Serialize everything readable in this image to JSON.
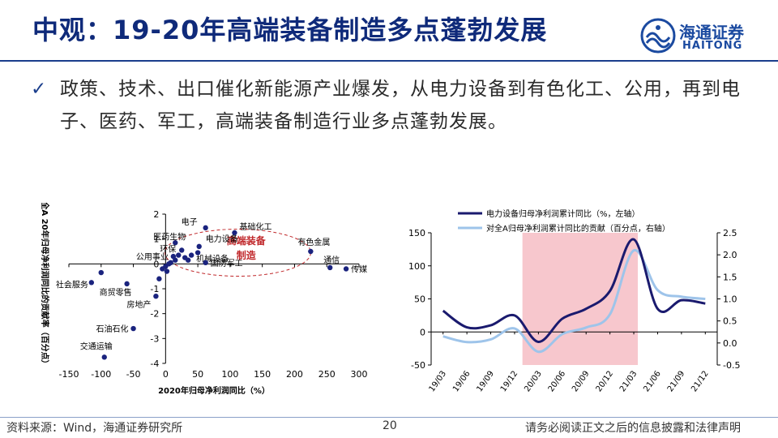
{
  "header": {
    "title": "中观：19-20年高端装备制造多点蓬勃发展",
    "logo_cn": "海通证券",
    "logo_en": "HAITONG"
  },
  "bullet": {
    "mark": "✓",
    "text": "政策、技术、出口催化新能源产业爆发，从电力设备到有色化工、公用，再到电子、医药、军工，高端装备制造行业多点蓬勃发展。"
  },
  "footer": {
    "source": "资料来源：Wind，海通证券研究所",
    "page": "20",
    "disclaimer": "请务必阅读正文之后的信息披露和法律声明"
  },
  "colors": {
    "brand": "#1a3e8c",
    "dot": "#1a237e",
    "highlight": "#c0282b",
    "line_dark": "#1a1a6e",
    "line_light": "#9ec4ea",
    "shade": "#f7c7cd"
  },
  "chart_data": [
    {
      "type": "scatter",
      "xlabel": "2020年归母净利润同比（%）",
      "ylabel": "对全A 20年归母净利润同比的贡献率（百分点）",
      "xlim": [
        -150,
        300
      ],
      "ylim": [
        -4,
        2
      ],
      "xticks": [
        -150,
        -100,
        -50,
        0,
        50,
        100,
        150,
        200,
        250,
        300
      ],
      "yticks": [
        2,
        1,
        0,
        -1,
        -2,
        -3,
        -4
      ],
      "annotation": {
        "text": "高端装备制造",
        "line1": "高端装备",
        "line2": "制造"
      },
      "points": [
        {
          "name": "电子",
          "x": 62,
          "y": 1.45,
          "label": true
        },
        {
          "name": "基础化工",
          "x": 107,
          "y": 1.25,
          "label": true
        },
        {
          "name": "医药生物",
          "x": 15,
          "y": 0.85,
          "label": true
        },
        {
          "name": "有色金属",
          "x": 225,
          "y": 0.5,
          "label": true
        },
        {
          "name": "环保",
          "x": 25,
          "y": 0.55,
          "label": true
        },
        {
          "name": "电力设备",
          "x": 52,
          "y": 0.7,
          "label": true
        },
        {
          "name": "机械设备",
          "x": 40,
          "y": 0.35,
          "label": true
        },
        {
          "name": "公用事业",
          "x": 12,
          "y": 0.3,
          "label": true
        },
        {
          "name": "国防军工",
          "x": 62,
          "y": 0.05,
          "label": true
        },
        {
          "name": "通信",
          "x": 255,
          "y": -0.15,
          "label": true
        },
        {
          "name": "传媒",
          "x": 280,
          "y": -0.2,
          "label": true
        },
        {
          "name": "社会服务",
          "x": -115,
          "y": -0.75,
          "label": true
        },
        {
          "name": "商贸零售",
          "x": -60,
          "y": -0.8,
          "label": true
        },
        {
          "name": "房地产",
          "x": -15,
          "y": -1.3,
          "label": true
        },
        {
          "name": "石油石化",
          "x": -50,
          "y": -2.6,
          "label": true
        },
        {
          "name": "交通运输",
          "x": -95,
          "y": -3.75,
          "label": true
        },
        {
          "name": "",
          "x": 50,
          "y": 0.45,
          "label": false
        },
        {
          "name": "",
          "x": 30,
          "y": 0.25,
          "label": false
        },
        {
          "name": "",
          "x": 35,
          "y": 0.15,
          "label": false
        },
        {
          "name": "",
          "x": 15,
          "y": 0.15,
          "label": false
        },
        {
          "name": "",
          "x": 5,
          "y": 0.0,
          "label": false
        },
        {
          "name": "",
          "x": 0,
          "y": -0.1,
          "label": false
        },
        {
          "name": "",
          "x": -5,
          "y": -0.2,
          "label": false
        },
        {
          "name": "",
          "x": 2,
          "y": -0.3,
          "label": false
        },
        {
          "name": "",
          "x": 8,
          "y": 0.05,
          "label": false
        },
        {
          "name": "",
          "x": 20,
          "y": 0.35,
          "label": false
        },
        {
          "name": "",
          "x": -100,
          "y": -0.35,
          "label": false
        },
        {
          "name": "",
          "x": -10,
          "y": -0.6,
          "label": false
        }
      ]
    },
    {
      "type": "line",
      "categories": [
        "19/03",
        "19/06",
        "19/09",
        "19/12",
        "20/03",
        "20/06",
        "20/09",
        "20/12",
        "21/03",
        "21/06",
        "21/09",
        "21/12"
      ],
      "left_ylim": [
        -50,
        150
      ],
      "left_yticks": [
        150,
        100,
        50,
        0,
        -50
      ],
      "right_ylim": [
        -0.5,
        2.5
      ],
      "right_yticks": [
        "2.5",
        "2.0",
        "1.5",
        "1.0",
        "0.5",
        "0.0",
        "-0.5"
      ],
      "shaded_range": [
        "20/01",
        "21/03"
      ],
      "series": [
        {
          "name": "电力设备归母净利润累计同比（%，左轴）",
          "axis": "left",
          "values": [
            32,
            7,
            10,
            25,
            -15,
            20,
            35,
            62,
            140,
            35,
            48,
            43
          ]
        },
        {
          "name": "对全A归母净利润累计同比的贡献（百分点，右轴）",
          "axis": "right",
          "values": [
            0.15,
            0.02,
            0.08,
            0.33,
            -0.2,
            0.2,
            0.35,
            0.65,
            2.1,
            1.2,
            1.05,
            1.0
          ]
        }
      ]
    }
  ]
}
